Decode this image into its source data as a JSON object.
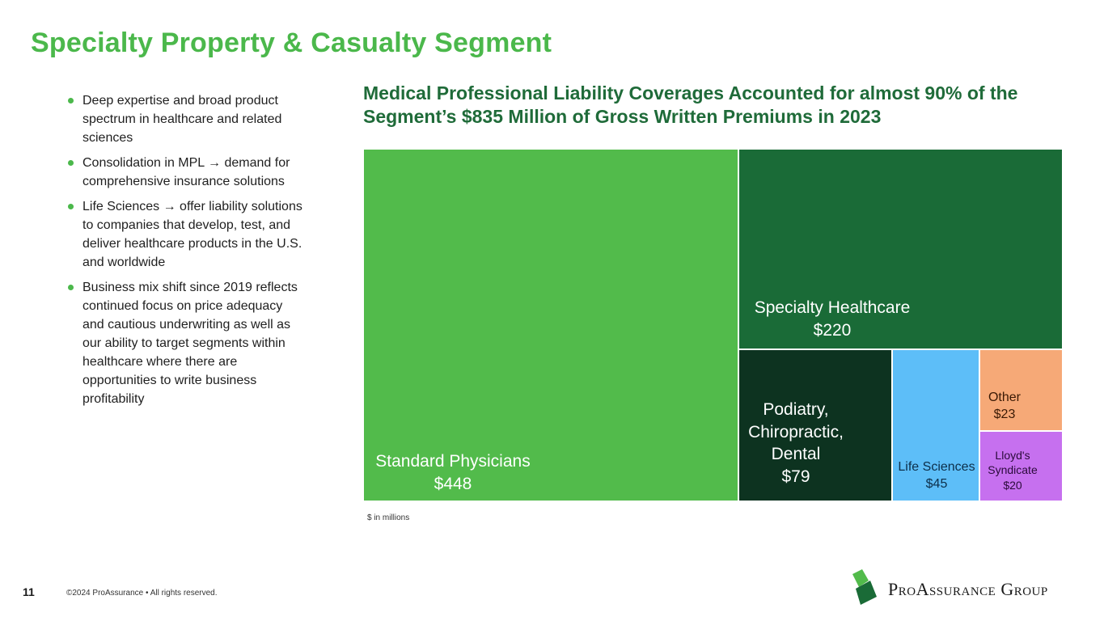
{
  "slide": {
    "title": "Specialty Property & Casualty Segment",
    "page_number": "11",
    "copyright": "©2024 ProAssurance  •  All rights reserved."
  },
  "bullets": [
    "Deep expertise and broad product spectrum in healthcare and related sciences",
    "Consolidation in MPL → demand for comprehensive insurance solutions",
    "Life Sciences → offer liability solutions to companies that develop, test, and deliver healthcare products in the U.S. and worldwide",
    "Business mix shift since 2019 reflects continued focus on price adequacy and cautious underwriting as well as our ability to target segments within healthcare where there are opportunities to write business profitability"
  ],
  "chart_data": {
    "type": "treemap",
    "title": "Medical Professional Liability Coverages Accounted for almost 90% of the Segment’s $835 Million of Gross Written Premiums in 2023",
    "unit_note": "$ in millions",
    "items": [
      {
        "name": "Standard Physicians",
        "label_lines": [
          "Standard Physicians"
        ],
        "value": 448,
        "value_label": "$448",
        "color": "#52bb4b",
        "text_color": "#ffffff"
      },
      {
        "name": "Specialty Healthcare",
        "label_lines": [
          "Specialty Healthcare"
        ],
        "value": 220,
        "value_label": "$220",
        "color": "#1a6b37",
        "text_color": "#ffffff"
      },
      {
        "name": "Podiatry, Chiropractic, Dental",
        "label_lines": [
          "Podiatry,",
          "Chiropractic,",
          "Dental"
        ],
        "value": 79,
        "value_label": "$79",
        "color": "#0d3320",
        "text_color": "#ffffff"
      },
      {
        "name": "Life Sciences",
        "label_lines": [
          "Life Sciences"
        ],
        "value": 45,
        "value_label": "$45",
        "color": "#5dbef8",
        "text_color": "#0d2f4a"
      },
      {
        "name": "Other",
        "label_lines": [
          "Other"
        ],
        "value": 23,
        "value_label": "$23",
        "color": "#f6a977",
        "text_color": "#3a1a05"
      },
      {
        "name": "Lloyd's Syndicate",
        "label_lines": [
          "Lloyd's",
          "Syndicate"
        ],
        "value": 20,
        "value_label": "$20",
        "color": "#c670ef",
        "text_color": "#2a0a3a"
      }
    ]
  },
  "logo": {
    "text": "ProAssurance Group",
    "colors": {
      "dark": "#1a6b37",
      "light": "#52bb4b"
    }
  }
}
